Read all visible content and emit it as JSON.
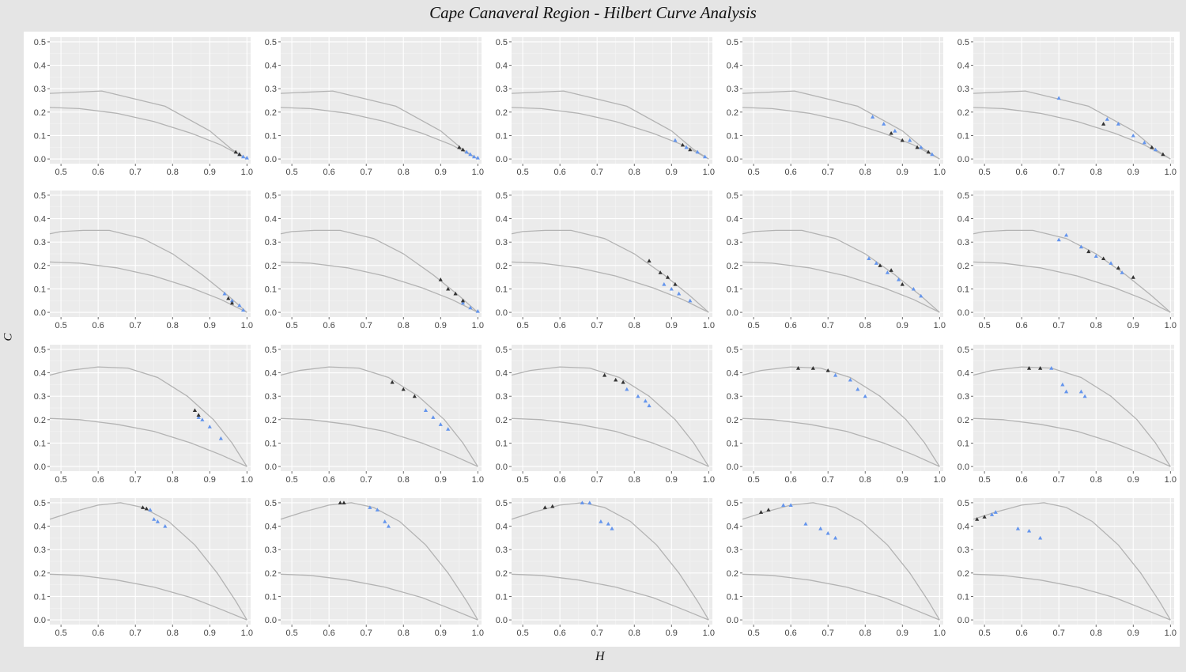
{
  "chart_data": {
    "type": "scatter",
    "title": "Cape Canaveral Region - Hilbert Curve Analysis",
    "xlabel": "H",
    "ylabel": "C",
    "xlim": [
      0.47,
      1.01
    ],
    "ylim": [
      -0.02,
      0.52
    ],
    "x_ticks": [
      "0.5",
      "0.6",
      "0.7",
      "0.8",
      "0.9",
      "1.0"
    ],
    "y_ticks": [
      "0.0",
      "0.1",
      "0.2",
      "0.3",
      "0.4",
      "0.5"
    ],
    "grid": true,
    "series_colors": {
      "dark": "#333333",
      "blue": "#6495ED"
    },
    "rows": [
      {
        "upper_bound": [
          [
            0.47,
            0.28
          ],
          [
            0.61,
            0.29
          ],
          [
            0.78,
            0.225
          ],
          [
            0.9,
            0.12
          ],
          [
            0.96,
            0.04
          ],
          [
            1.0,
            0.0
          ]
        ],
        "lower_bound": [
          [
            0.47,
            0.22
          ],
          [
            0.55,
            0.215
          ],
          [
            0.65,
            0.195
          ],
          [
            0.75,
            0.16
          ],
          [
            0.85,
            0.11
          ],
          [
            0.93,
            0.06
          ],
          [
            1.0,
            0.0
          ]
        ],
        "panels": [
          {
            "dark": [
              [
                0.97,
                0.03
              ],
              [
                0.98,
                0.02
              ]
            ],
            "blue": [
              [
                0.98,
                0.02
              ],
              [
                0.99,
                0.01
              ],
              [
                1.0,
                0.005
              ]
            ]
          },
          {
            "dark": [
              [
                0.95,
                0.05
              ],
              [
                0.96,
                0.04
              ]
            ],
            "blue": [
              [
                0.97,
                0.03
              ],
              [
                0.98,
                0.02
              ],
              [
                0.99,
                0.01
              ],
              [
                1.0,
                0.005
              ]
            ]
          },
          {
            "dark": [
              [
                0.93,
                0.06
              ],
              [
                0.95,
                0.04
              ]
            ],
            "blue": [
              [
                0.91,
                0.08
              ],
              [
                0.94,
                0.05
              ],
              [
                0.97,
                0.03
              ],
              [
                0.99,
                0.01
              ]
            ]
          },
          {
            "dark": [
              [
                0.87,
                0.11
              ],
              [
                0.9,
                0.08
              ],
              [
                0.94,
                0.05
              ],
              [
                0.97,
                0.03
              ]
            ],
            "blue": [
              [
                0.82,
                0.18
              ],
              [
                0.85,
                0.15
              ],
              [
                0.88,
                0.12
              ],
              [
                0.92,
                0.08
              ],
              [
                0.95,
                0.05
              ],
              [
                0.98,
                0.02
              ]
            ]
          },
          {
            "dark": [
              [
                0.82,
                0.15
              ],
              [
                0.95,
                0.05
              ],
              [
                0.98,
                0.02
              ]
            ],
            "blue": [
              [
                0.7,
                0.26
              ],
              [
                0.83,
                0.17
              ],
              [
                0.86,
                0.15
              ],
              [
                0.9,
                0.1
              ],
              [
                0.93,
                0.07
              ],
              [
                0.96,
                0.04
              ]
            ]
          }
        ]
      },
      {
        "upper_bound": [
          [
            0.47,
            0.335
          ],
          [
            0.5,
            0.345
          ],
          [
            0.56,
            0.35
          ],
          [
            0.63,
            0.35
          ],
          [
            0.72,
            0.315
          ],
          [
            0.8,
            0.25
          ],
          [
            0.88,
            0.16
          ],
          [
            0.95,
            0.07
          ],
          [
            1.0,
            0.0
          ]
        ],
        "lower_bound": [
          [
            0.47,
            0.215
          ],
          [
            0.55,
            0.21
          ],
          [
            0.65,
            0.19
          ],
          [
            0.75,
            0.155
          ],
          [
            0.85,
            0.105
          ],
          [
            0.93,
            0.055
          ],
          [
            1.0,
            0.0
          ]
        ],
        "panels": [
          {
            "dark": [
              [
                0.95,
                0.06
              ],
              [
                0.96,
                0.04
              ]
            ],
            "blue": [
              [
                0.94,
                0.08
              ],
              [
                0.96,
                0.05
              ],
              [
                0.98,
                0.03
              ],
              [
                0.99,
                0.01
              ]
            ]
          },
          {
            "dark": [
              [
                0.9,
                0.14
              ],
              [
                0.92,
                0.1
              ],
              [
                0.94,
                0.08
              ],
              [
                0.96,
                0.05
              ]
            ],
            "blue": [
              [
                0.96,
                0.04
              ],
              [
                0.98,
                0.02
              ],
              [
                1.0,
                0.005
              ]
            ]
          },
          {
            "dark": [
              [
                0.84,
                0.22
              ],
              [
                0.87,
                0.17
              ],
              [
                0.89,
                0.15
              ],
              [
                0.91,
                0.12
              ]
            ],
            "blue": [
              [
                0.88,
                0.12
              ],
              [
                0.9,
                0.1
              ],
              [
                0.92,
                0.08
              ],
              [
                0.95,
                0.05
              ]
            ]
          },
          {
            "dark": [
              [
                0.84,
                0.2
              ],
              [
                0.87,
                0.18
              ],
              [
                0.9,
                0.12
              ]
            ],
            "blue": [
              [
                0.81,
                0.23
              ],
              [
                0.83,
                0.21
              ],
              [
                0.86,
                0.17
              ],
              [
                0.89,
                0.14
              ],
              [
                0.93,
                0.1
              ],
              [
                0.95,
                0.07
              ]
            ]
          },
          {
            "dark": [
              [
                0.78,
                0.26
              ],
              [
                0.82,
                0.23
              ],
              [
                0.86,
                0.19
              ],
              [
                0.9,
                0.15
              ]
            ],
            "blue": [
              [
                0.7,
                0.31
              ],
              [
                0.72,
                0.33
              ],
              [
                0.76,
                0.28
              ],
              [
                0.8,
                0.24
              ],
              [
                0.84,
                0.21
              ],
              [
                0.87,
                0.17
              ]
            ]
          }
        ]
      },
      {
        "upper_bound": [
          [
            0.47,
            0.39
          ],
          [
            0.52,
            0.41
          ],
          [
            0.6,
            0.425
          ],
          [
            0.68,
            0.42
          ],
          [
            0.76,
            0.38
          ],
          [
            0.84,
            0.3
          ],
          [
            0.91,
            0.2
          ],
          [
            0.96,
            0.1
          ],
          [
            1.0,
            0.0
          ]
        ],
        "lower_bound": [
          [
            0.47,
            0.205
          ],
          [
            0.55,
            0.2
          ],
          [
            0.65,
            0.18
          ],
          [
            0.75,
            0.15
          ],
          [
            0.85,
            0.1
          ],
          [
            0.93,
            0.05
          ],
          [
            1.0,
            0.0
          ]
        ],
        "panels": [
          {
            "dark": [
              [
                0.86,
                0.24
              ],
              [
                0.87,
                0.22
              ]
            ],
            "blue": [
              [
                0.87,
                0.21
              ],
              [
                0.88,
                0.2
              ],
              [
                0.9,
                0.17
              ],
              [
                0.93,
                0.12
              ]
            ]
          },
          {
            "dark": [
              [
                0.77,
                0.36
              ],
              [
                0.8,
                0.33
              ],
              [
                0.83,
                0.3
              ]
            ],
            "blue": [
              [
                0.86,
                0.24
              ],
              [
                0.88,
                0.21
              ],
              [
                0.9,
                0.18
              ],
              [
                0.92,
                0.16
              ]
            ]
          },
          {
            "dark": [
              [
                0.72,
                0.39
              ],
              [
                0.75,
                0.37
              ],
              [
                0.77,
                0.36
              ]
            ],
            "blue": [
              [
                0.78,
                0.33
              ],
              [
                0.81,
                0.3
              ],
              [
                0.83,
                0.28
              ],
              [
                0.84,
                0.26
              ]
            ]
          },
          {
            "dark": [
              [
                0.62,
                0.42
              ],
              [
                0.66,
                0.42
              ],
              [
                0.7,
                0.41
              ]
            ],
            "blue": [
              [
                0.72,
                0.39
              ],
              [
                0.76,
                0.37
              ],
              [
                0.78,
                0.33
              ],
              [
                0.8,
                0.3
              ]
            ]
          },
          {
            "dark": [
              [
                0.62,
                0.42
              ],
              [
                0.65,
                0.42
              ]
            ],
            "blue": [
              [
                0.68,
                0.42
              ],
              [
                0.71,
                0.35
              ],
              [
                0.72,
                0.32
              ],
              [
                0.76,
                0.32
              ],
              [
                0.77,
                0.3
              ]
            ]
          }
        ]
      },
      {
        "upper_bound": [
          [
            0.47,
            0.43
          ],
          [
            0.53,
            0.46
          ],
          [
            0.6,
            0.49
          ],
          [
            0.66,
            0.5
          ],
          [
            0.72,
            0.48
          ],
          [
            0.79,
            0.42
          ],
          [
            0.86,
            0.32
          ],
          [
            0.92,
            0.2
          ],
          [
            0.97,
            0.08
          ],
          [
            1.0,
            0.0
          ]
        ],
        "lower_bound": [
          [
            0.47,
            0.195
          ],
          [
            0.55,
            0.19
          ],
          [
            0.65,
            0.17
          ],
          [
            0.75,
            0.14
          ],
          [
            0.85,
            0.095
          ],
          [
            0.93,
            0.045
          ],
          [
            1.0,
            0.0
          ]
        ],
        "panels": [
          {
            "dark": [
              [
                0.72,
                0.48
              ],
              [
                0.73,
                0.475
              ]
            ],
            "blue": [
              [
                0.74,
                0.47
              ],
              [
                0.75,
                0.43
              ],
              [
                0.76,
                0.42
              ],
              [
                0.78,
                0.4
              ]
            ]
          },
          {
            "dark": [
              [
                0.63,
                0.5
              ],
              [
                0.64,
                0.5
              ]
            ],
            "blue": [
              [
                0.71,
                0.48
              ],
              [
                0.73,
                0.47
              ],
              [
                0.75,
                0.42
              ],
              [
                0.76,
                0.4
              ]
            ]
          },
          {
            "dark": [
              [
                0.56,
                0.48
              ],
              [
                0.58,
                0.485
              ]
            ],
            "blue": [
              [
                0.66,
                0.5
              ],
              [
                0.68,
                0.5
              ],
              [
                0.71,
                0.42
              ],
              [
                0.73,
                0.41
              ],
              [
                0.74,
                0.39
              ]
            ]
          },
          {
            "dark": [
              [
                0.52,
                0.46
              ],
              [
                0.54,
                0.47
              ]
            ],
            "blue": [
              [
                0.58,
                0.49
              ],
              [
                0.6,
                0.49
              ],
              [
                0.64,
                0.41
              ],
              [
                0.68,
                0.39
              ],
              [
                0.7,
                0.37
              ],
              [
                0.72,
                0.35
              ]
            ]
          },
          {
            "dark": [
              [
                0.48,
                0.43
              ],
              [
                0.5,
                0.44
              ]
            ],
            "blue": [
              [
                0.52,
                0.45
              ],
              [
                0.53,
                0.46
              ],
              [
                0.59,
                0.39
              ],
              [
                0.62,
                0.38
              ],
              [
                0.65,
                0.35
              ]
            ]
          }
        ]
      }
    ]
  }
}
